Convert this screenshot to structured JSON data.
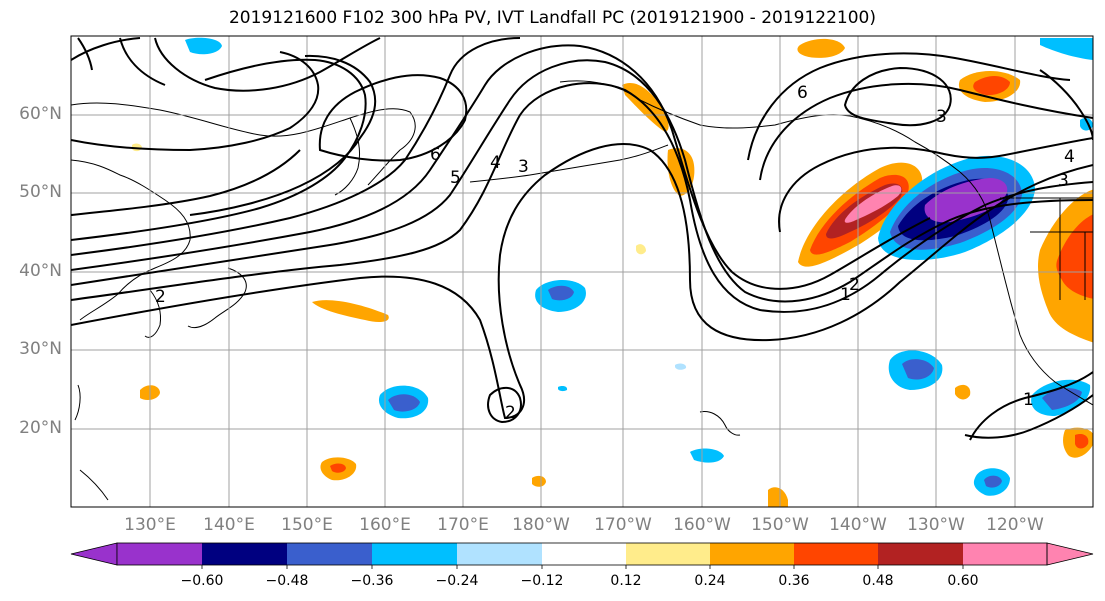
{
  "title": "2019121600 F102 300 hPa PV, IVT Landfall PC (2019121900 - 2019122100)",
  "map": {
    "lat_ticks": [
      "60°N",
      "50°N",
      "40°N",
      "30°N",
      "20°N"
    ],
    "lon_ticks": [
      "130°E",
      "140°E",
      "150°E",
      "160°E",
      "170°E",
      "180°W",
      "170°W",
      "160°W",
      "150°W",
      "140°W",
      "130°W",
      "120°W"
    ],
    "contour_labels": [
      "6",
      "5",
      "4",
      "3",
      "2",
      "6",
      "3",
      "4",
      "3",
      "1",
      "2",
      "1",
      "2"
    ],
    "grid_color": "#a0a0a0"
  },
  "colorbar": {
    "colors": [
      "#9932cc",
      "#000080",
      "#3a5fcd",
      "#00bfff",
      "#b0e2ff",
      "#ffffff",
      "#ffec8b",
      "#ffa500",
      "#ff4500",
      "#b22222",
      "#ff83b0"
    ],
    "labels": [
      "−0.60",
      "−0.48",
      "−0.36",
      "−0.24",
      "−0.12",
      "0.12",
      "0.24",
      "0.36",
      "0.48",
      "0.60"
    ]
  }
}
